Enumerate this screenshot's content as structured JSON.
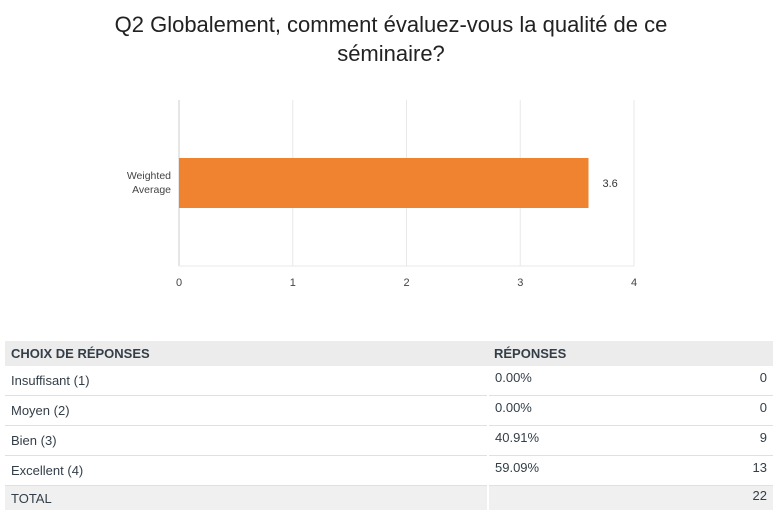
{
  "question": {
    "title_line1": "Q2 Globalement, comment évaluez-vous la qualité de ce",
    "title_line2": "séminaire?"
  },
  "chart_data": {
    "type": "bar",
    "orientation": "horizontal",
    "categories": [
      "Weighted Average"
    ],
    "category_lines": [
      "Weighted",
      "Average"
    ],
    "values": [
      3.6
    ],
    "value_labels": [
      "3.6"
    ],
    "xlim": [
      0,
      4
    ],
    "xticks": [
      "0",
      "1",
      "2",
      "3",
      "4"
    ],
    "grid": true,
    "bar_color": "#f0832f",
    "grid_color": "#e8e8e8"
  },
  "table": {
    "headers": [
      "CHOIX DE RÉPONSES",
      "RÉPONSES"
    ],
    "rows": [
      {
        "choice": "Insuffisant (1)",
        "percent": "0.00%",
        "count": "0"
      },
      {
        "choice": "Moyen (2)",
        "percent": "0.00%",
        "count": "0"
      },
      {
        "choice": "Bien (3)",
        "percent": "40.91%",
        "count": "9"
      },
      {
        "choice": "Excellent (4)",
        "percent": "59.09%",
        "count": "13"
      }
    ],
    "total_label": "TOTAL",
    "total_count": "22"
  }
}
